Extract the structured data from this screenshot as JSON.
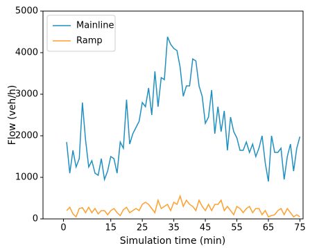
{
  "chart_data": {
    "type": "line",
    "x_label": "Simulation time (min)",
    "y_label": "Flow (veh/h)",
    "x": [
      1,
      2,
      3,
      4,
      5,
      6,
      7,
      8,
      9,
      10,
      11,
      12,
      13,
      14,
      15,
      16,
      17,
      18,
      19,
      20,
      21,
      22,
      23,
      24,
      25,
      26,
      27,
      28,
      29,
      30,
      31,
      32,
      33,
      34,
      35,
      36,
      37,
      38,
      39,
      40,
      41,
      42,
      43,
      44,
      45,
      46,
      47,
      48,
      49,
      50,
      51,
      52,
      53,
      54,
      55,
      56,
      57,
      58,
      59,
      60,
      61,
      62,
      63,
      64,
      65,
      66,
      67,
      68,
      69,
      70,
      71,
      72,
      73,
      74,
      75
    ],
    "series": [
      {
        "name": "Mainline",
        "color": "#1f8fc0",
        "values": [
          1850,
          1100,
          1650,
          1250,
          1450,
          2800,
          1900,
          1250,
          1400,
          1100,
          1050,
          1450,
          950,
          1150,
          1500,
          1450,
          1100,
          1850,
          1700,
          2870,
          1800,
          2050,
          2200,
          2350,
          2800,
          2700,
          3150,
          2500,
          3550,
          2700,
          3400,
          3350,
          4380,
          4200,
          4100,
          4050,
          3650,
          2950,
          3200,
          3200,
          3850,
          3800,
          3200,
          2950,
          2300,
          2450,
          3100,
          2050,
          2700,
          2100,
          2600,
          1650,
          2450,
          2100,
          1950,
          1650,
          1650,
          1850,
          1600,
          1800,
          1500,
          1700,
          2000,
          1350,
          900,
          2000,
          1600,
          1600,
          1700,
          950,
          1500,
          1800,
          1150,
          1700,
          1980
        ]
      },
      {
        "name": "Ramp",
        "color": "#ff9f2e",
        "values": [
          200,
          280,
          120,
          50,
          250,
          270,
          150,
          280,
          150,
          250,
          120,
          200,
          200,
          100,
          200,
          250,
          150,
          80,
          220,
          280,
          150,
          200,
          250,
          200,
          350,
          400,
          350,
          250,
          150,
          450,
          250,
          300,
          350,
          200,
          400,
          350,
          550,
          300,
          450,
          350,
          300,
          200,
          450,
          300,
          200,
          350,
          200,
          350,
          350,
          450,
          200,
          300,
          200,
          100,
          300,
          250,
          150,
          250,
          300,
          150,
          250,
          250,
          100,
          200,
          50,
          80,
          100,
          200,
          250,
          100,
          250,
          150,
          50,
          100,
          50
        ]
      }
    ],
    "xlim": [
      -6.5,
      76
    ],
    "ylim": [
      0,
      5000
    ],
    "xticks": [
      0,
      15,
      25,
      35,
      45,
      55,
      65,
      75
    ],
    "yticks": [
      0,
      1000,
      2000,
      3000,
      4000,
      5000
    ],
    "legend": "upper left"
  }
}
